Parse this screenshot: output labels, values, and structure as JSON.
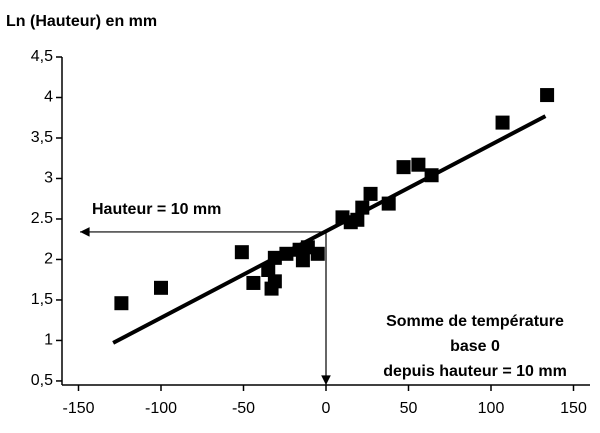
{
  "chart_data": {
    "type": "scatter",
    "y_axis_title": "Ln (Hauteur) en mm",
    "x": [
      -124,
      -100,
      -51,
      -44,
      -35,
      -33,
      -31,
      -31,
      -24,
      -16,
      -14,
      -11,
      -5,
      10,
      15,
      19,
      22,
      27,
      38,
      47,
      56,
      64,
      107,
      134
    ],
    "values": [
      1.46,
      1.65,
      2.09,
      1.71,
      1.87,
      1.64,
      1.73,
      2.02,
      2.07,
      2.12,
      1.99,
      2.15,
      2.07,
      2.52,
      2.46,
      2.49,
      2.64,
      2.81,
      2.69,
      3.14,
      3.17,
      3.04,
      3.69,
      4.03
    ],
    "color": "#000000",
    "trend_line": {
      "x": [
        -129,
        133
      ],
      "y": [
        0.97,
        3.77
      ]
    },
    "reference": {
      "x": 0,
      "y": 2.34,
      "label": "Hauteur = 10 mm"
    },
    "annotation": [
      "Somme de température",
      "base 0",
      "depuis hauteur = 10 mm"
    ],
    "xlim": [
      -160,
      160
    ],
    "xticks": [
      -150,
      -100,
      -50,
      0,
      50,
      100,
      150
    ],
    "ylim": [
      0.45,
      4.5
    ],
    "yticks": [
      {
        "value": 0.5,
        "label": "0,5"
      },
      1,
      {
        "value": 1.5,
        "label": "1,5"
      },
      2,
      2.5,
      3,
      {
        "value": 3.5,
        "label": "3,5"
      },
      4,
      {
        "value": 4.5,
        "label": "4,5"
      }
    ]
  }
}
